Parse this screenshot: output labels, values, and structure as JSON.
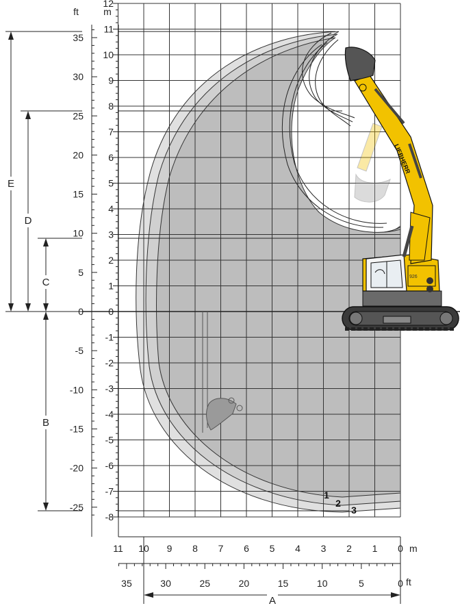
{
  "units": {
    "feet": "ft",
    "meters": "m",
    "meters_bottom": "m",
    "feet_bottom": "ft"
  },
  "scale_m_vertical": [
    "12",
    "11",
    "10",
    "9",
    "8",
    "7",
    "6",
    "5",
    "4",
    "3",
    "2",
    "1",
    "0",
    "-1",
    "-2",
    "-3",
    "-4",
    "-5",
    "-6",
    "-7",
    "-8"
  ],
  "scale_ft_vertical": [
    "35",
    "30",
    "25",
    "20",
    "15",
    "10",
    "5",
    "0",
    "-5",
    "-10",
    "-15",
    "-20",
    "-25"
  ],
  "scale_m_horizontal": [
    "11",
    "10",
    "9",
    "8",
    "7",
    "6",
    "5",
    "4",
    "3",
    "2",
    "1",
    "0"
  ],
  "scale_ft_horizontal": [
    "35",
    "30",
    "25",
    "20",
    "15",
    "10",
    "5",
    "0"
  ],
  "dimensions": {
    "a": "A",
    "b": "B",
    "c": "C",
    "d": "D",
    "e": "E"
  },
  "curves": {
    "c1": "1",
    "c2": "2",
    "c3": "3"
  },
  "machine_text": {
    "brand": "LIEBHERR",
    "model": "926"
  },
  "colors": {
    "envelope_light": "#d9d9d9",
    "envelope_dark": "#bdbdbd",
    "machine_yellow": "#f2c200",
    "grid": "#333333"
  }
}
